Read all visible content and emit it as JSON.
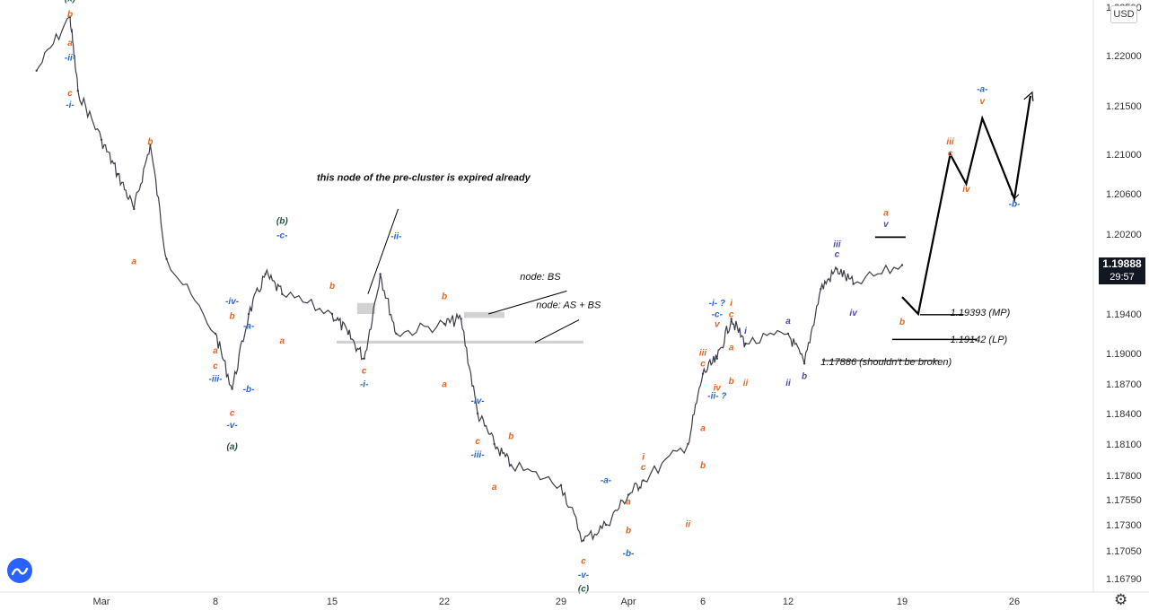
{
  "chart_data": {
    "type": "line",
    "ylim": [
      1.1679,
      1.2257
    ],
    "x_ticks": [
      "Mar",
      "8",
      "15",
      "22",
      "29",
      "Apr",
      "6",
      "12",
      "19",
      "26"
    ],
    "y_ticks": [
      "1.22500",
      "1.22000",
      "1.21500",
      "1.21000",
      "1.20600",
      "1.20200",
      "1.19400",
      "1.19000",
      "1.18700",
      "1.18400",
      "1.18100",
      "1.17800",
      "1.17550",
      "1.17300",
      "1.17050",
      "1.16790"
    ],
    "currency": "USD",
    "last_price": "1.19888",
    "countdown": "29:57",
    "series": [
      {
        "x": [
          "Feb 25",
          "Feb 26",
          "Feb 27",
          "Mar 1",
          "Mar 2",
          "Mar 3",
          "Mar 4",
          "Mar 5",
          "Mar 8",
          "Mar 9",
          "Mar 10",
          "Mar 11",
          "Mar 12",
          "Mar 15",
          "Mar 16",
          "Mar 17",
          "Mar 18",
          "Mar 19",
          "Mar 22",
          "Mar 23",
          "Mar 24",
          "Mar 25",
          "Mar 26",
          "Mar 29",
          "Mar 30",
          "Mar 31",
          "Apr 1",
          "Apr 2",
          "Apr 5",
          "Apr 6",
          "Apr 7",
          "Apr 8",
          "Apr 9",
          "Apr 12",
          "Apr 13",
          "Apr 14",
          "Apr 15",
          "Apr 16",
          "Apr 19"
        ],
        "values": [
          1.2185,
          1.224,
          1.2165,
          1.2115,
          1.208,
          1.2045,
          1.211,
          1.1995,
          1.192,
          1.1865,
          1.194,
          1.198,
          1.196,
          1.194,
          1.192,
          1.1895,
          1.198,
          1.192,
          1.193,
          1.1935,
          1.184,
          1.181,
          1.179,
          1.177,
          1.1715,
          1.173,
          1.176,
          1.1775,
          1.181,
          1.188,
          1.1895,
          1.1935,
          1.191,
          1.192,
          1.189,
          1.1965,
          1.1985,
          1.197,
          1.1989
        ]
      }
    ],
    "wave_labels": [
      {
        "text": "(x)",
        "x": "Feb 26",
        "y": 1.2256,
        "color": "#1f5648"
      },
      {
        "text": "b",
        "x": "Feb 26",
        "y": 1.224,
        "color": "#e6641e"
      },
      {
        "text": "a",
        "x": "Feb 26",
        "y": 1.221,
        "color": "#e6641e"
      },
      {
        "text": "-ii-",
        "x": "Feb 26",
        "y": 1.2195,
        "color": "#2a66c8"
      },
      {
        "text": "c",
        "x": "Feb 26",
        "y": 1.216,
        "color": "#e6641e"
      },
      {
        "text": "-i-",
        "x": "Feb 26",
        "y": 1.2148,
        "color": "#2a66c8"
      },
      {
        "text": "b",
        "x": "Mar 4",
        "y": 1.211,
        "color": "#e6641e"
      },
      {
        "text": "a",
        "x": "Mar 3",
        "y": 1.199,
        "color": "#e6641e"
      },
      {
        "text": "(b)",
        "x": "Mar 12",
        "y": 1.203,
        "color": "#1f5648"
      },
      {
        "text": "-c-",
        "x": "Mar 12",
        "y": 1.2016,
        "color": "#2a66c8"
      },
      {
        "text": "b",
        "x": "Mar 15",
        "y": 1.1965,
        "color": "#e6641e"
      },
      {
        "text": "a",
        "x": "Mar 12",
        "y": 1.191,
        "color": "#e6641e"
      },
      {
        "text": "-ii-",
        "x": "Mar 19",
        "y": 1.2015,
        "color": "#2a66c8"
      },
      {
        "text": "c",
        "x": "Mar 17",
        "y": 1.188,
        "color": "#e6641e"
      },
      {
        "text": "-i-",
        "x": "Mar 17",
        "y": 1.1867,
        "color": "#2a66c8"
      },
      {
        "text": "b",
        "x": "Mar 22",
        "y": 1.1955,
        "color": "#e6641e"
      },
      {
        "text": "a",
        "x": "Mar 22",
        "y": 1.1867,
        "color": "#e6641e"
      },
      {
        "text": "-iv-",
        "x": "Mar 9",
        "y": 1.195,
        "color": "#2a66c8"
      },
      {
        "text": "b",
        "x": "Mar 9",
        "y": 1.1935,
        "color": "#e6641e"
      },
      {
        "text": "a",
        "x": "Mar 8",
        "y": 1.19,
        "color": "#e6641e"
      },
      {
        "text": "c",
        "x": "Mar 8",
        "y": 1.1885,
        "color": "#e6641e"
      },
      {
        "text": "-iii-",
        "x": "Mar 8",
        "y": 1.1872,
        "color": "#2a66c8"
      },
      {
        "text": "-a-",
        "x": "Mar 10",
        "y": 1.1925,
        "color": "#2a66c8"
      },
      {
        "text": "-b-",
        "x": "Mar 10",
        "y": 1.1862,
        "color": "#2a66c8"
      },
      {
        "text": "c",
        "x": "Mar 9",
        "y": 1.1838,
        "color": "#e6641e"
      },
      {
        "text": "-v-",
        "x": "Mar 9",
        "y": 1.1826,
        "color": "#2a66c8"
      },
      {
        "text": "(a)",
        "x": "Mar 9",
        "y": 1.1805,
        "color": "#1f5648"
      },
      {
        "text": "-iv-",
        "x": "Mar 24",
        "y": 1.185,
        "color": "#2a66c8"
      },
      {
        "text": "c",
        "x": "Mar 24",
        "y": 1.181,
        "color": "#e6641e"
      },
      {
        "text": "-iii-",
        "x": "Mar 24",
        "y": 1.1797,
        "color": "#2a66c8"
      },
      {
        "text": "b",
        "x": "Mar 26",
        "y": 1.1815,
        "color": "#e6641e"
      },
      {
        "text": "a",
        "x": "Mar 25",
        "y": 1.1765,
        "color": "#e6641e"
      },
      {
        "text": "-a-",
        "x": "Mar 31",
        "y": 1.1772,
        "color": "#2a66c8"
      },
      {
        "text": "a",
        "x": "Apr 1",
        "y": 1.175,
        "color": "#e6641e"
      },
      {
        "text": "b",
        "x": "Apr 1",
        "y": 1.1722,
        "color": "#e6641e"
      },
      {
        "text": "-b-",
        "x": "Apr 1",
        "y": 1.17,
        "color": "#2a66c8"
      },
      {
        "text": "c",
        "x": "Mar 30",
        "y": 1.1693,
        "color": "#e6641e"
      },
      {
        "text": "-v-",
        "x": "Mar 30",
        "y": 1.168,
        "color": "#2a66c8"
      },
      {
        "text": "(c)",
        "x": "Mar 30",
        "y": 1.1666,
        "color": "#1f5648"
      },
      {
        "text": "i",
        "x": "Apr 2",
        "y": 1.1795,
        "color": "#e6641e"
      },
      {
        "text": "c",
        "x": "Apr 2",
        "y": 1.1785,
        "color": "#e6641e"
      },
      {
        "text": "ii",
        "x": "Apr 5",
        "y": 1.1728,
        "color": "#e6641e"
      },
      {
        "text": "a",
        "x": "Apr 6",
        "y": 1.1823,
        "color": "#e6641e"
      },
      {
        "text": "b",
        "x": "Apr 6",
        "y": 1.1787,
        "color": "#e6641e"
      },
      {
        "text": "iii",
        "x": "Apr 6",
        "y": 1.1898,
        "color": "#e6641e"
      },
      {
        "text": "c",
        "x": "Apr 6",
        "y": 1.1887,
        "color": "#e6641e"
      },
      {
        "text": "iv",
        "x": "Apr 7",
        "y": 1.1863,
        "color": "#e6641e"
      },
      {
        "text": "-i- ?",
        "x": "Apr 7",
        "y": 1.1948,
        "color": "#2a66c8"
      },
      {
        "text": "-c-",
        "x": "Apr 7",
        "y": 1.1937,
        "color": "#2a66c8"
      },
      {
        "text": "v",
        "x": "Apr 7",
        "y": 1.1927,
        "color": "#e6641e"
      },
      {
        "text": "i",
        "x": "Apr 8",
        "y": 1.1948,
        "color": "#e6641e"
      },
      {
        "text": "c",
        "x": "Apr 8",
        "y": 1.1937,
        "color": "#e6641e"
      },
      {
        "text": "a",
        "x": "Apr 8",
        "y": 1.1903,
        "color": "#e6641e"
      },
      {
        "text": "b",
        "x": "Apr 8",
        "y": 1.187,
        "color": "#e6641e"
      },
      {
        "text": "-ii- ?",
        "x": "Apr 7",
        "y": 1.1855,
        "color": "#2a66c8"
      },
      {
        "text": "ii",
        "x": "Apr 9",
        "y": 1.1868,
        "color": "#e6641e"
      },
      {
        "text": "i",
        "x": "Apr 9",
        "y": 1.192,
        "color": "#4a4aa8"
      },
      {
        "text": "a",
        "x": "Apr 12",
        "y": 1.193,
        "color": "#4a4aa8"
      },
      {
        "text": "ii",
        "x": "Apr 12",
        "y": 1.1868,
        "color": "#4a4aa8"
      },
      {
        "text": "b",
        "x": "Apr 13",
        "y": 1.1875,
        "color": "#4a4aa8"
      },
      {
        "text": "iii",
        "x": "Apr 15",
        "y": 1.2007,
        "color": "#4a4aa8"
      },
      {
        "text": "c",
        "x": "Apr 15",
        "y": 1.1997,
        "color": "#4a4aa8"
      },
      {
        "text": "iv",
        "x": "Apr 16",
        "y": 1.1938,
        "color": "#4a4aa8"
      },
      {
        "text": "a",
        "x": "Apr 18",
        "y": 1.2038,
        "color": "#e6641e"
      },
      {
        "text": "v",
        "x": "Apr 18",
        "y": 1.2027,
        "color": "#4a4aa8"
      },
      {
        "text": "b",
        "x": "Apr 19",
        "y": 1.1929,
        "color": "#e6641e"
      },
      {
        "text": "iii",
        "x": "Apr 22",
        "y": 1.211,
        "color": "#e6641e"
      },
      {
        "text": "c",
        "x": "Apr 22",
        "y": 1.2098,
        "color": "#e6641e"
      },
      {
        "text": "iv",
        "x": "Apr 23",
        "y": 1.2062,
        "color": "#e6641e"
      },
      {
        "text": "-a-",
        "x": "Apr 24",
        "y": 1.2164,
        "color": "#2a66c8"
      },
      {
        "text": "v",
        "x": "Apr 24",
        "y": 1.2152,
        "color": "#e6641e"
      },
      {
        "text": "-b-",
        "x": "Apr 26",
        "y": 1.2047,
        "color": "#2a66c8"
      }
    ],
    "annotations": [
      {
        "text": "this node of the pre-cluster is expired already",
        "x": "Mar 15",
        "y": 1.2073
      },
      {
        "text": "node: BS",
        "x": "Mar 26",
        "y": 1.1974
      },
      {
        "text": "node: AS + BS",
        "x": "Mar 26",
        "y": 1.1946
      },
      {
        "text": "1.19393 (MP)",
        "x": "Apr 22",
        "y": 1.1938
      },
      {
        "text": "1.19142 (LP)",
        "x": "Apr 22",
        "y": 1.1911
      },
      {
        "text": "1.17886 (shouldn't be broken)",
        "x": "Apr 14",
        "y": 1.1862
      }
    ]
  }
}
